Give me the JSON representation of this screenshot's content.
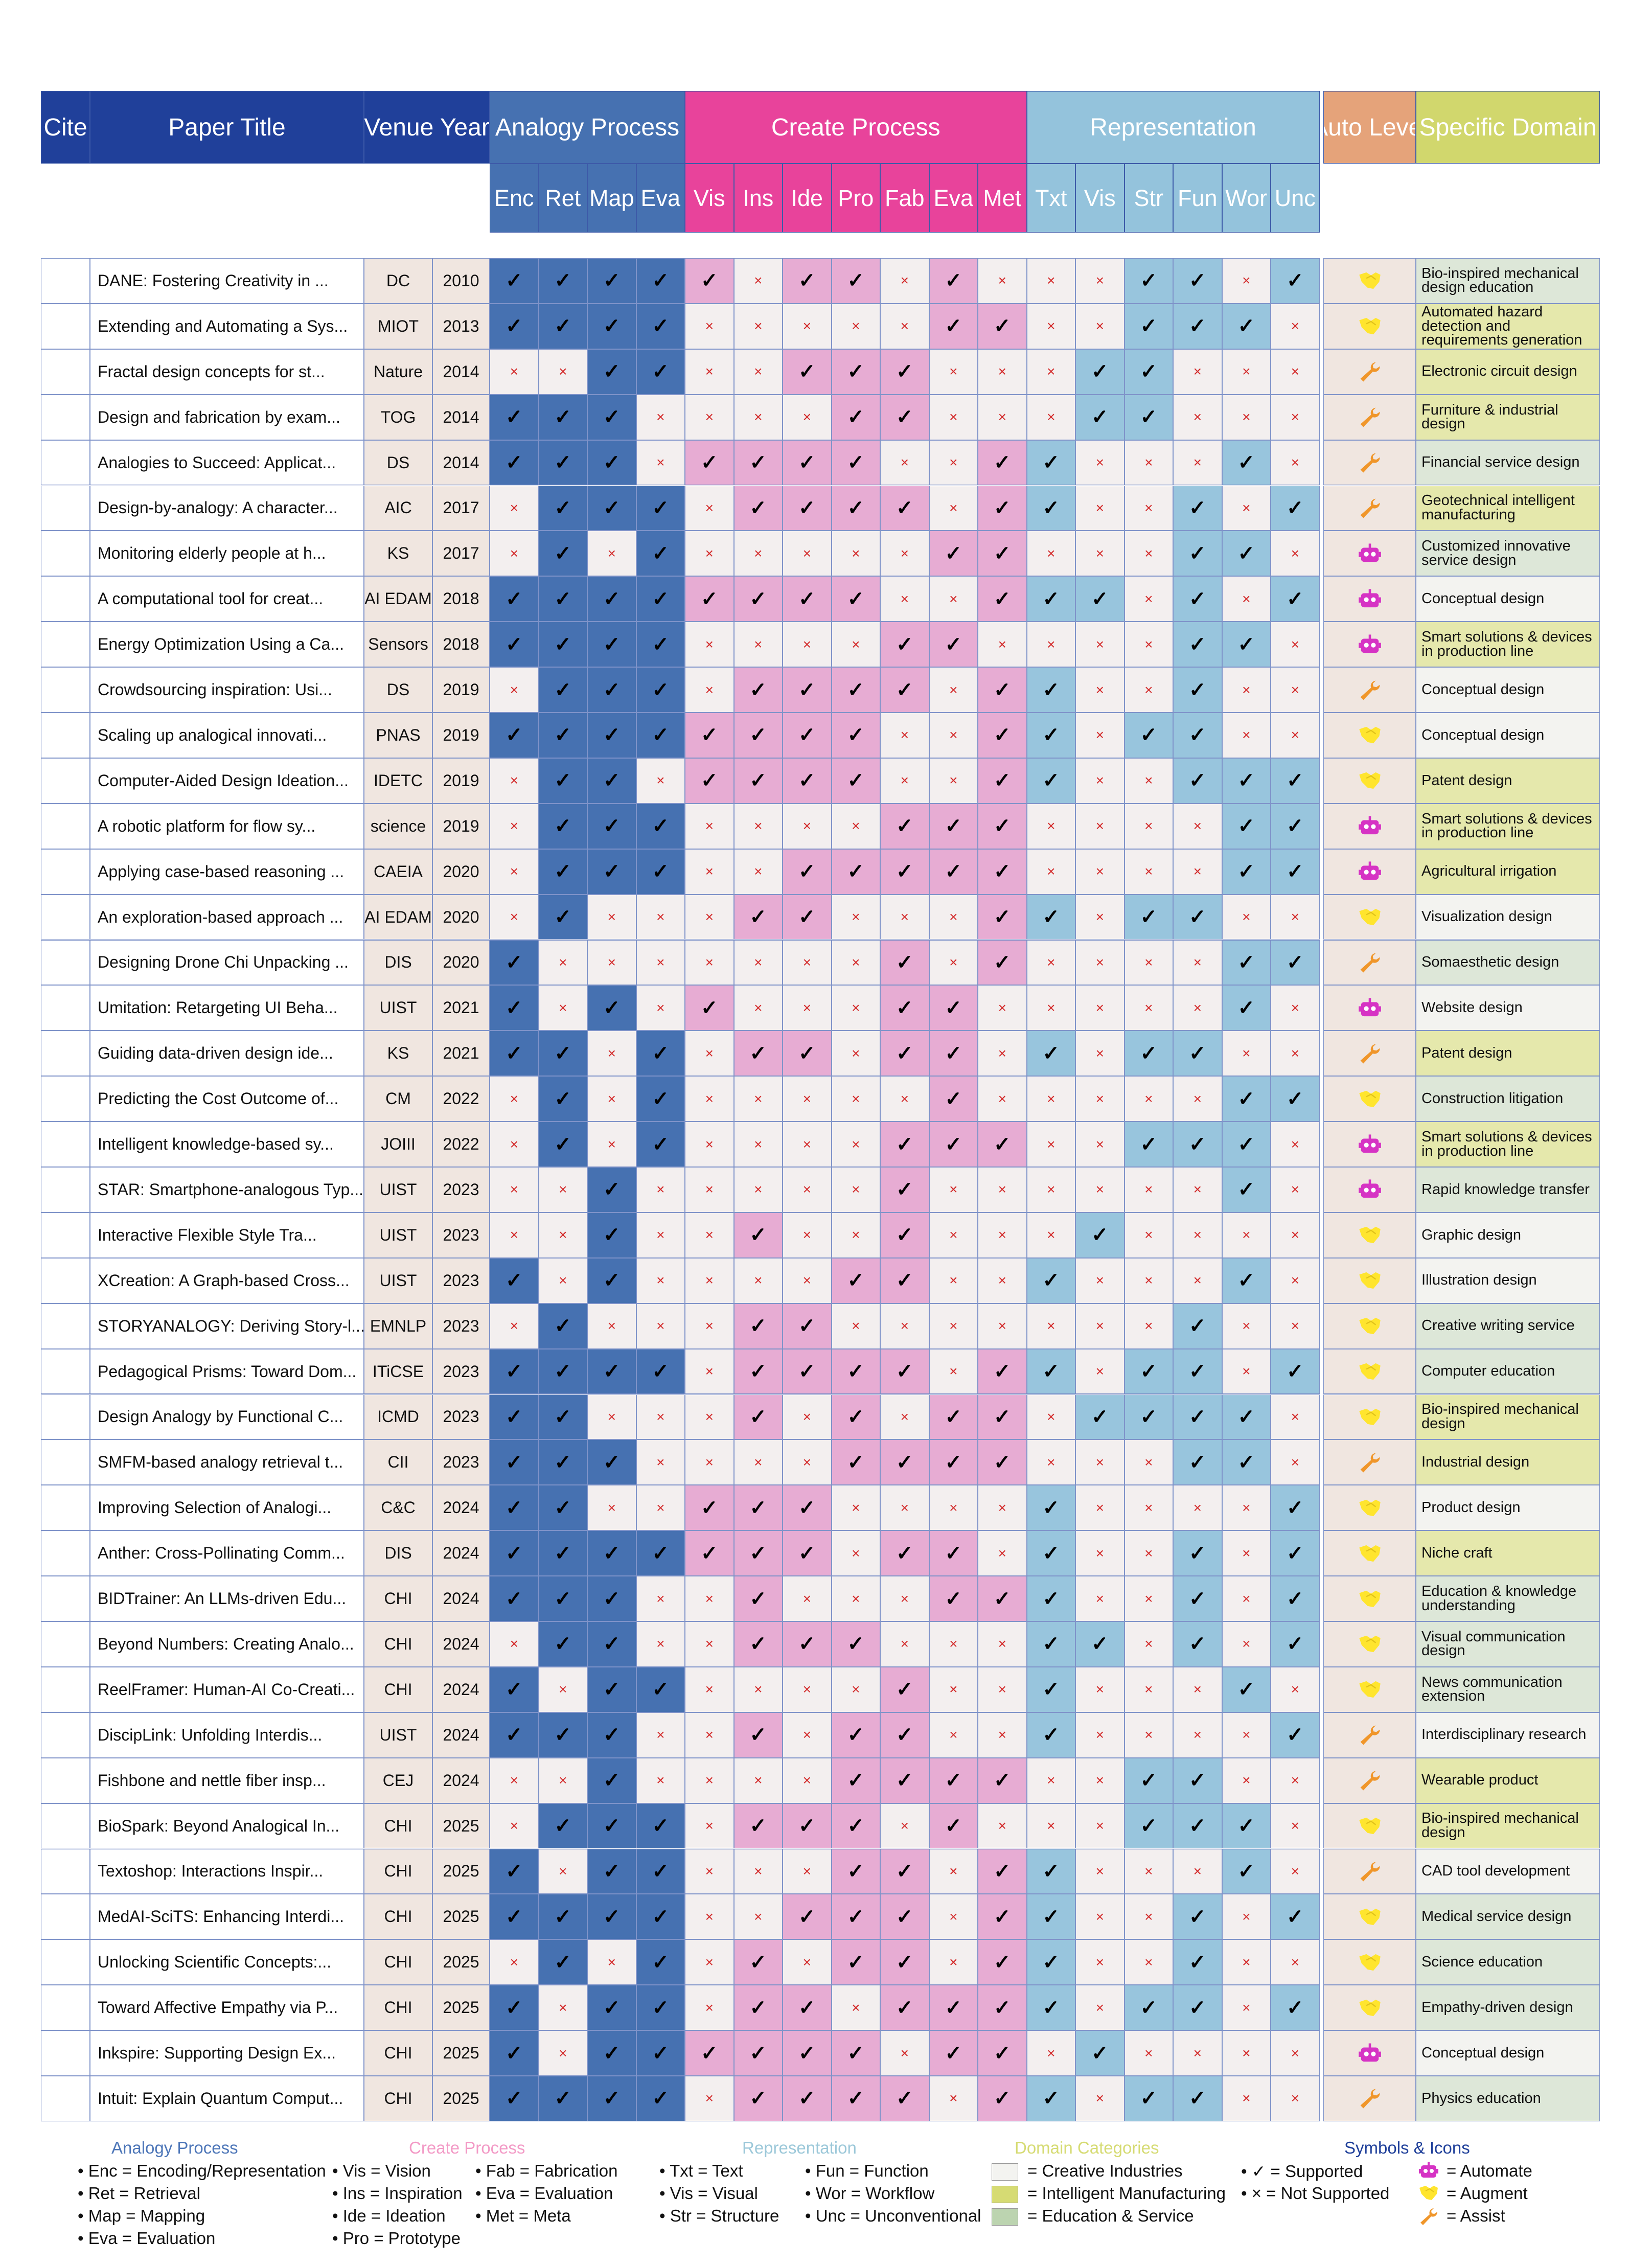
{
  "colors": {
    "header_blue": "#20409a",
    "analogy": "#4671b1",
    "create": "#e8439b",
    "representation": "#94c3dc",
    "auto": "#e5a37a",
    "domain": "#d1d76d",
    "pink_cell": "#e7acd3",
    "blue_cell": "#98c5dd",
    "bg_cell": "#f3efef",
    "venue_bg": "#f0e6e0",
    "creative": "#f3f3f0",
    "manufacturing": "#e5e8ac",
    "education": "#dde7d8"
  },
  "header": {
    "cite": "Cite",
    "title": "Paper Title",
    "venue_year": "Venue Year",
    "analogy": "Analogy Process",
    "create": "Create Process",
    "representation": "Representation",
    "auto": "Auto Level",
    "domain": "Specific Domain"
  },
  "subheaders": [
    "Enc",
    "Ret",
    "Map",
    "Eva",
    "Vis",
    "Ins",
    "Ide",
    "Pro",
    "Fab",
    "Eva",
    "Met",
    "Txt",
    "Vis",
    "Str",
    "Fun",
    "Wor",
    "Unc"
  ],
  "symbols": {
    "yes": "✓",
    "no": "×"
  },
  "rows": [
    {
      "title": "DANE: Fostering Creativity in ...",
      "venue": "DC",
      "year": "2010",
      "marks": "11111011010001101",
      "auto": "augment",
      "domain": "Bio-inspired mechanical design education",
      "cat": "edu"
    },
    {
      "title": "Extending and Automating a Sys...",
      "venue": "MIOT",
      "year": "2013",
      "marks": "11110000011001110",
      "auto": "augment",
      "domain": "Automated hazard detection and requirements generation",
      "cat": "mfg"
    },
    {
      "title": "Fractal design concepts for st...",
      "venue": "Nature",
      "year": "2014",
      "marks": "00110011100011000",
      "auto": "assist",
      "domain": "Electronic circuit design",
      "cat": "mfg"
    },
    {
      "title": "Design and fabrication by exam...",
      "venue": "TOG",
      "year": "2014",
      "marks": "11100001100011000",
      "auto": "assist",
      "domain": "Furniture & industrial design",
      "cat": "mfg"
    },
    {
      "title": "Analogies to Succeed: Applicat...",
      "venue": "DS",
      "year": "2014",
      "marks": "11101111001100010",
      "auto": "assist",
      "domain": "Financial service design",
      "cat": "edu"
    },
    {
      "title": "Design-by-analogy: A character...",
      "venue": "AIC",
      "year": "2017",
      "marks": "01110111101100101",
      "auto": "assist",
      "domain": "Geotechnical intelligent manufacturing",
      "cat": "mfg"
    },
    {
      "title": "Monitoring elderly people at h...",
      "venue": "KS",
      "year": "2017",
      "marks": "01010000011000110",
      "auto": "automate",
      "domain": "Customized innovative service design",
      "cat": "edu"
    },
    {
      "title": "A computational tool for creat...",
      "venue": "AI EDAM",
      "year": "2018",
      "marks": "11111111001110101",
      "auto": "automate",
      "domain": "Conceptual design",
      "cat": "cre"
    },
    {
      "title": "Energy Optimization Using a Ca...",
      "venue": "Sensors",
      "year": "2018",
      "marks": "11110000110000110",
      "auto": "automate",
      "domain": "Smart solutions & devices in production line",
      "cat": "mfg"
    },
    {
      "title": "Crowdsourcing inspiration: Usi...",
      "venue": "DS",
      "year": "2019",
      "marks": "01110111101100100",
      "auto": "assist",
      "domain": "Conceptual design",
      "cat": "cre"
    },
    {
      "title": "Scaling up analogical innovati...",
      "venue": "PNAS",
      "year": "2019",
      "marks": "11111111001101100",
      "auto": "augment",
      "domain": "Conceptual design",
      "cat": "cre"
    },
    {
      "title": "Computer-Aided Design Ideation...",
      "venue": "IDETC",
      "year": "2019",
      "marks": "01101111001100111",
      "auto": "augment",
      "domain": "Patent design",
      "cat": "mfg"
    },
    {
      "title": "A robotic platform for flow sy...",
      "venue": "science",
      "year": "2019",
      "marks": "01110000111000011",
      "auto": "automate",
      "domain": "Smart solutions & devices in production line",
      "cat": "mfg"
    },
    {
      "title": "Applying case-based reasoning ...",
      "venue": "CAEIA",
      "year": "2020",
      "marks": "01110011111000011",
      "auto": "automate",
      "domain": "Agricultural irrigation",
      "cat": "mfg"
    },
    {
      "title": "An exploration-based approach ...",
      "venue": "AI EDAM",
      "year": "2020",
      "marks": "01000110001101100",
      "auto": "augment",
      "domain": "Visualization design",
      "cat": "cre"
    },
    {
      "title": "Designing Drone Chi Unpacking ...",
      "venue": "DIS",
      "year": "2020",
      "marks": "10000000101000011",
      "auto": "assist",
      "domain": "Somaesthetic design",
      "cat": "edu"
    },
    {
      "title": "Umitation: Retargeting UI Beha...",
      "venue": "UIST",
      "year": "2021",
      "marks": "10101000110000010",
      "auto": "automate",
      "domain": "Website design",
      "cat": "cre"
    },
    {
      "title": "Guiding data-driven design ide...",
      "venue": "KS",
      "year": "2021",
      "marks": "11010110110101100",
      "auto": "assist",
      "domain": "Patent design",
      "cat": "mfg"
    },
    {
      "title": "Predicting the Cost Outcome of...",
      "venue": "CM",
      "year": "2022",
      "marks": "01010000010000011",
      "auto": "augment",
      "domain": "Construction litigation",
      "cat": "edu"
    },
    {
      "title": "Intelligent knowledge-based sy...",
      "venue": "JOIII",
      "year": "2022",
      "marks": "01010000111001110",
      "auto": "automate",
      "domain": "Smart solutions & devices in production line",
      "cat": "mfg"
    },
    {
      "title": "STAR: Smartphone-analogous Typ...",
      "venue": "UIST",
      "year": "2023",
      "marks": "00100000100000010",
      "auto": "automate",
      "domain": "Rapid knowledge transfer",
      "cat": "edu"
    },
    {
      "title": "Interactive Flexible Style Tra...",
      "venue": "UIST",
      "year": "2023",
      "marks": "00100100100010000",
      "auto": "augment",
      "domain": "Graphic design",
      "cat": "cre"
    },
    {
      "title": "XCreation: A Graph-based Cross...",
      "venue": "UIST",
      "year": "2023",
      "marks": "10100001100100010",
      "auto": "augment",
      "domain": "Illustration design",
      "cat": "cre"
    },
    {
      "title": "STORYANALOGY: Deriving Story-l...",
      "venue": "EMNLP",
      "year": "2023",
      "marks": "01000110000000100",
      "auto": "augment",
      "domain": "Creative writing service",
      "cat": "edu"
    },
    {
      "title": "Pedagogical Prisms: Toward Dom...",
      "venue": "ITiCSE",
      "year": "2023",
      "marks": "11110111101101101",
      "auto": "augment",
      "domain": "Computer education",
      "cat": "edu"
    },
    {
      "title": "Design Analogy by Functional C...",
      "venue": "ICMD",
      "year": "2023",
      "marks": "11000101011011110",
      "auto": "augment",
      "domain": "Bio-inspired mechanical design",
      "cat": "mfg"
    },
    {
      "title": "SMFM-based analogy retrieval t...",
      "venue": "CII",
      "year": "2023",
      "marks": "11100001111000110",
      "auto": "assist",
      "domain": "Industrial design",
      "cat": "mfg"
    },
    {
      "title": "Improving Selection of Analogi...",
      "venue": "C&C",
      "year": "2024",
      "marks": "11001110000100001",
      "auto": "augment",
      "domain": "Product design",
      "cat": "cre"
    },
    {
      "title": "Anther: Cross-Pollinating Comm...",
      "venue": "DIS",
      "year": "2024",
      "marks": "11111110110100101",
      "auto": "augment",
      "domain": "Niche craft",
      "cat": "mfg"
    },
    {
      "title": "BIDTrainer: An LLMs-driven Edu...",
      "venue": "CHI",
      "year": "2024",
      "marks": "11100100011100101",
      "auto": "augment",
      "domain": "Education & knowledge understanding",
      "cat": "edu"
    },
    {
      "title": "Beyond Numbers: Creating Analo...",
      "venue": "CHI",
      "year": "2024",
      "marks": "01100111000110101",
      "auto": "augment",
      "domain": "Visual communication design",
      "cat": "edu"
    },
    {
      "title": "ReelFramer: Human-AI Co-Creati...",
      "venue": "CHI",
      "year": "2024",
      "marks": "10110000100100010",
      "auto": "augment",
      "domain": "News communication extension",
      "cat": "edu"
    },
    {
      "title": "DiscipLink: Unfolding Interdis...",
      "venue": "UIST",
      "year": "2024",
      "marks": "11100101100100001",
      "auto": "assist",
      "domain": "Interdisciplinary research",
      "cat": "cre"
    },
    {
      "title": "Fishbone and nettle fiber insp...",
      "venue": "CEJ",
      "year": "2024",
      "marks": "00100001111001100",
      "auto": "assist",
      "domain": "Wearable product",
      "cat": "mfg"
    },
    {
      "title": "BioSpark: Beyond Analogical In...",
      "venue": "CHI",
      "year": "2025",
      "marks": "01110111010001110",
      "auto": "augment",
      "domain": "Bio-inspired mechanical design",
      "cat": "mfg"
    },
    {
      "title": "Textoshop: Interactions Inspir...",
      "venue": "CHI",
      "year": "2025",
      "marks": "10110001101100010",
      "auto": "assist",
      "domain": "CAD tool development",
      "cat": "cre"
    },
    {
      "title": "MedAI-SciTS: Enhancing Interdi...",
      "venue": "CHI",
      "year": "2025",
      "marks": "11110011101100101",
      "auto": "augment",
      "domain": "Medical service design",
      "cat": "edu"
    },
    {
      "title": "Unlocking Scientific Concepts:...",
      "venue": "CHI",
      "year": "2025",
      "marks": "01010101101100100",
      "auto": "augment",
      "domain": "Science education",
      "cat": "edu"
    },
    {
      "title": "Toward Affective Empathy via P...",
      "venue": "CHI",
      "year": "2025",
      "marks": "10110110111101101",
      "auto": "augment",
      "domain": "Empathy-driven design",
      "cat": "edu"
    },
    {
      "title": "Inkspire: Supporting Design Ex...",
      "venue": "CHI",
      "year": "2025",
      "marks": "10111111011010000",
      "auto": "automate",
      "domain": "Conceptual design",
      "cat": "cre"
    },
    {
      "title": "Intuit: Explain Quantum Comput...",
      "venue": "CHI",
      "year": "2025",
      "marks": "11110111101101100",
      "auto": "assist",
      "domain": "Physics education",
      "cat": "edu"
    }
  ],
  "legend": {
    "analogy": {
      "title": "Analogy Process",
      "items": [
        "• Enc = Encoding/Representation",
        "• Ret = Retrieval",
        "• Map = Mapping",
        "• Eva = Evaluation"
      ]
    },
    "create": {
      "title": "Create Process",
      "col1": [
        "• Vis = Vision",
        "• Ins = Inspiration",
        "• Ide = Ideation",
        "• Pro = Prototype"
      ],
      "col2": [
        "• Fab = Fabrication",
        "• Eva = Evaluation",
        "• Met = Meta"
      ]
    },
    "representation": {
      "title": "Representation",
      "col1": [
        "• Txt = Text",
        "• Vis = Visual",
        "• Str = Structure"
      ],
      "col2": [
        "• Fun = Function",
        "• Wor = Workflow",
        "• Unc = Unconventional"
      ]
    },
    "domain": {
      "title": "Domain Categories",
      "items": [
        "= Creative Industries",
        "= Intelligent Manufacturing",
        "= Education & Service"
      ]
    },
    "symbols": {
      "title": "Symbols & Icons",
      "items": [
        "• ✓ = Supported",
        "• × = Not Supported"
      ],
      "icons": [
        "= Automate",
        "= Augment",
        "= Assist"
      ]
    }
  },
  "legend_colors": {
    "analogy": "#4d76b8",
    "create": "#f39ac6",
    "representation": "#9cc8d9",
    "domain": "#d6db73",
    "symbols": "#20409a"
  }
}
